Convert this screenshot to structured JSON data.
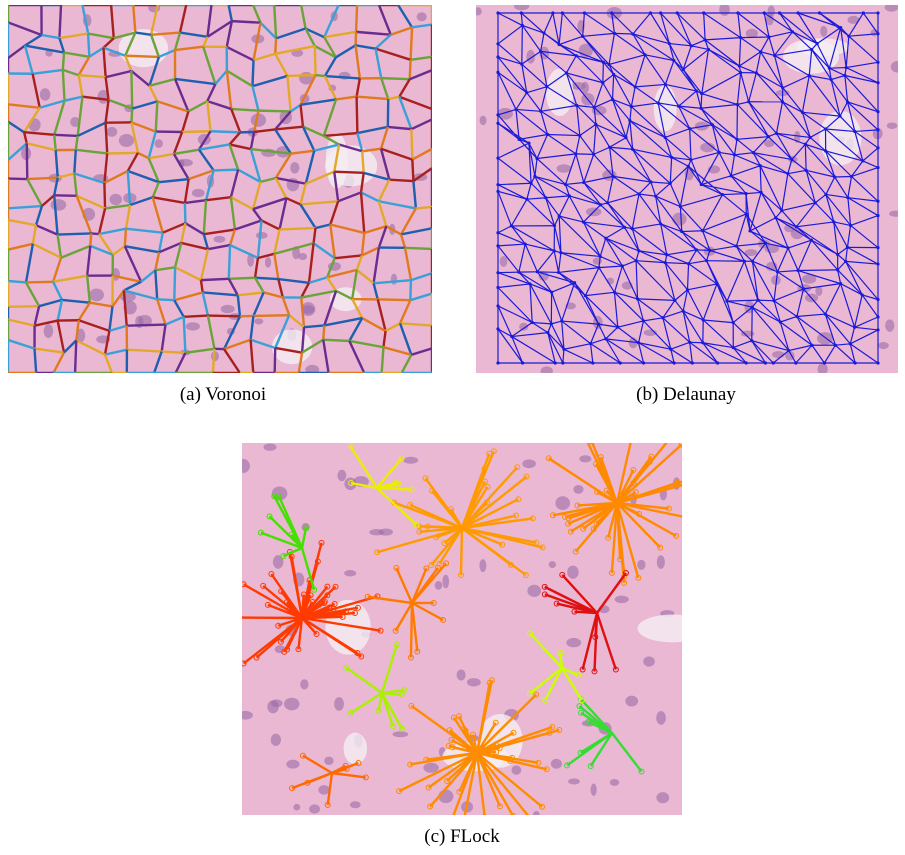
{
  "figure": {
    "panels": [
      {
        "caption": "(a) Voronoi"
      },
      {
        "caption": "(b) Delaunay"
      },
      {
        "caption": "(c) FLock"
      }
    ]
  }
}
